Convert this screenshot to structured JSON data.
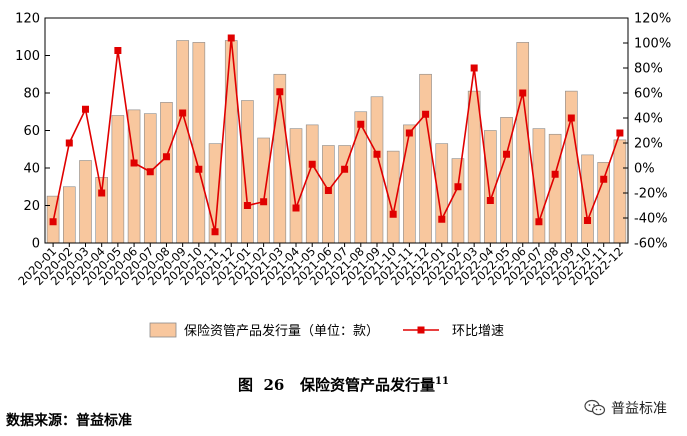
{
  "chart_data": {
    "type": "bar+line",
    "categories": [
      "2020-01",
      "2020-02",
      "2020-03",
      "2020-04",
      "2020-05",
      "2020-06",
      "2020-07",
      "2020-08",
      "2020-09",
      "2020-10",
      "2020-11",
      "2020-12",
      "2021-01",
      "2021-02",
      "2021-03",
      "2021-04",
      "2021-05",
      "2021-06",
      "2021-07",
      "2021-08",
      "2021-09",
      "2021-10",
      "2021-11",
      "2021-12",
      "2022-01",
      "2022-02",
      "2022-03",
      "2022-04",
      "2022-05",
      "2022-06",
      "2022-07",
      "2022-08",
      "2022-09",
      "2022-10",
      "2022-11",
      "2022-12"
    ],
    "series": [
      {
        "name": "保险资管产品发行量（单位：款）",
        "type": "bar",
        "axis": "left",
        "color": "#F8C79E",
        "values": [
          25,
          30,
          44,
          35,
          68,
          71,
          69,
          75,
          108,
          107,
          53,
          108,
          76,
          56,
          90,
          61,
          63,
          52,
          52,
          70,
          78,
          49,
          63,
          90,
          53,
          45,
          81,
          60,
          67,
          107,
          61,
          58,
          81,
          47,
          43,
          55
        ]
      },
      {
        "name": "环比增速",
        "type": "line",
        "axis": "right",
        "color": "#E00000",
        "values": [
          -43,
          20,
          47,
          -20,
          94,
          4,
          -3,
          9,
          44,
          -1,
          -51,
          104,
          -30,
          -27,
          61,
          -32,
          3,
          -18,
          -1,
          35,
          11,
          -37,
          28,
          43,
          -41,
          -15,
          80,
          -26,
          11,
          60,
          -43,
          -5,
          40,
          -42,
          -9,
          28
        ]
      }
    ],
    "y_left": {
      "min": 0,
      "max": 120,
      "ticks": [
        "0",
        "20",
        "40",
        "60",
        "80",
        "100",
        "120"
      ]
    },
    "y_right": {
      "min": -60,
      "max": 120,
      "ticks": [
        "-60%",
        "-40%",
        "-20%",
        "0%",
        "20%",
        "40%",
        "60%",
        "80%",
        "100%",
        "120%"
      ]
    },
    "legend_placement": "bottom",
    "grid": false
  },
  "caption": {
    "label": "图",
    "number": "26",
    "title": "保险资管产品发行量",
    "footnote": "11"
  },
  "source": "数据来源：普益标准",
  "watermark": {
    "text": "普益标准",
    "icon": "wechat-icon"
  }
}
